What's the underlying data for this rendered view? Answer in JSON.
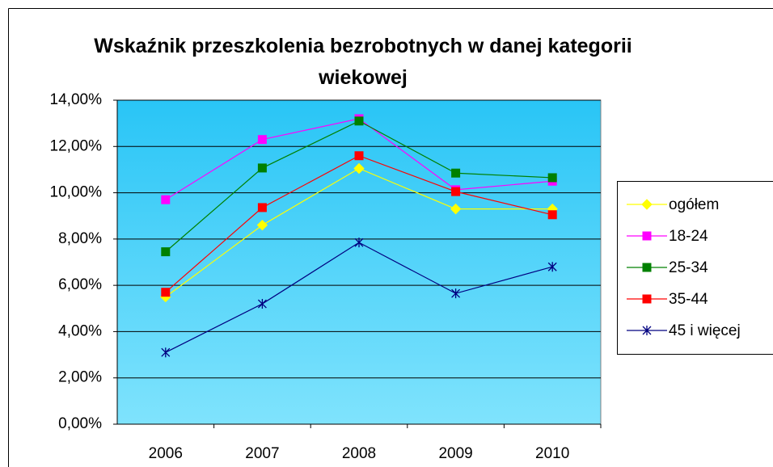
{
  "chart_data": {
    "type": "line",
    "title": "Wskaźnik przeszkolenia bezrobotnych w danej kategorii wiekowej",
    "categories": [
      "2006",
      "2007",
      "2008",
      "2009",
      "2010"
    ],
    "series": [
      {
        "name": "ogółem",
        "color": "#ffff00",
        "marker": "diamond",
        "values": [
          5.5,
          8.6,
          11.05,
          9.3,
          9.3
        ]
      },
      {
        "name": "18-24",
        "color": "#ff00ff",
        "marker": "square",
        "values": [
          9.7,
          12.3,
          13.2,
          10.13,
          10.5
        ]
      },
      {
        "name": "25-34",
        "color": "#008000",
        "marker": "square",
        "values": [
          7.45,
          11.07,
          13.1,
          10.85,
          10.65
        ]
      },
      {
        "name": "35-44",
        "color": "#ff0000",
        "marker": "square",
        "values": [
          5.7,
          9.36,
          11.6,
          10.05,
          9.05
        ]
      },
      {
        "name": "45 i więcej",
        "color": "#000080",
        "marker": "star",
        "values": [
          3.1,
          5.2,
          7.85,
          5.65,
          6.8
        ]
      }
    ],
    "ylim": [
      0,
      14
    ],
    "yticks": [
      {
        "value": 0,
        "label": "0,00%"
      },
      {
        "value": 2,
        "label": "2,00%"
      },
      {
        "value": 4,
        "label": "4,00%"
      },
      {
        "value": 6,
        "label": "6,00%"
      },
      {
        "value": 8,
        "label": "8,00%"
      },
      {
        "value": 10,
        "label": "10,00%"
      },
      {
        "value": 12,
        "label": "12,00%"
      },
      {
        "value": 14,
        "label": "14,00%"
      }
    ],
    "grid": true,
    "legend": "right"
  }
}
